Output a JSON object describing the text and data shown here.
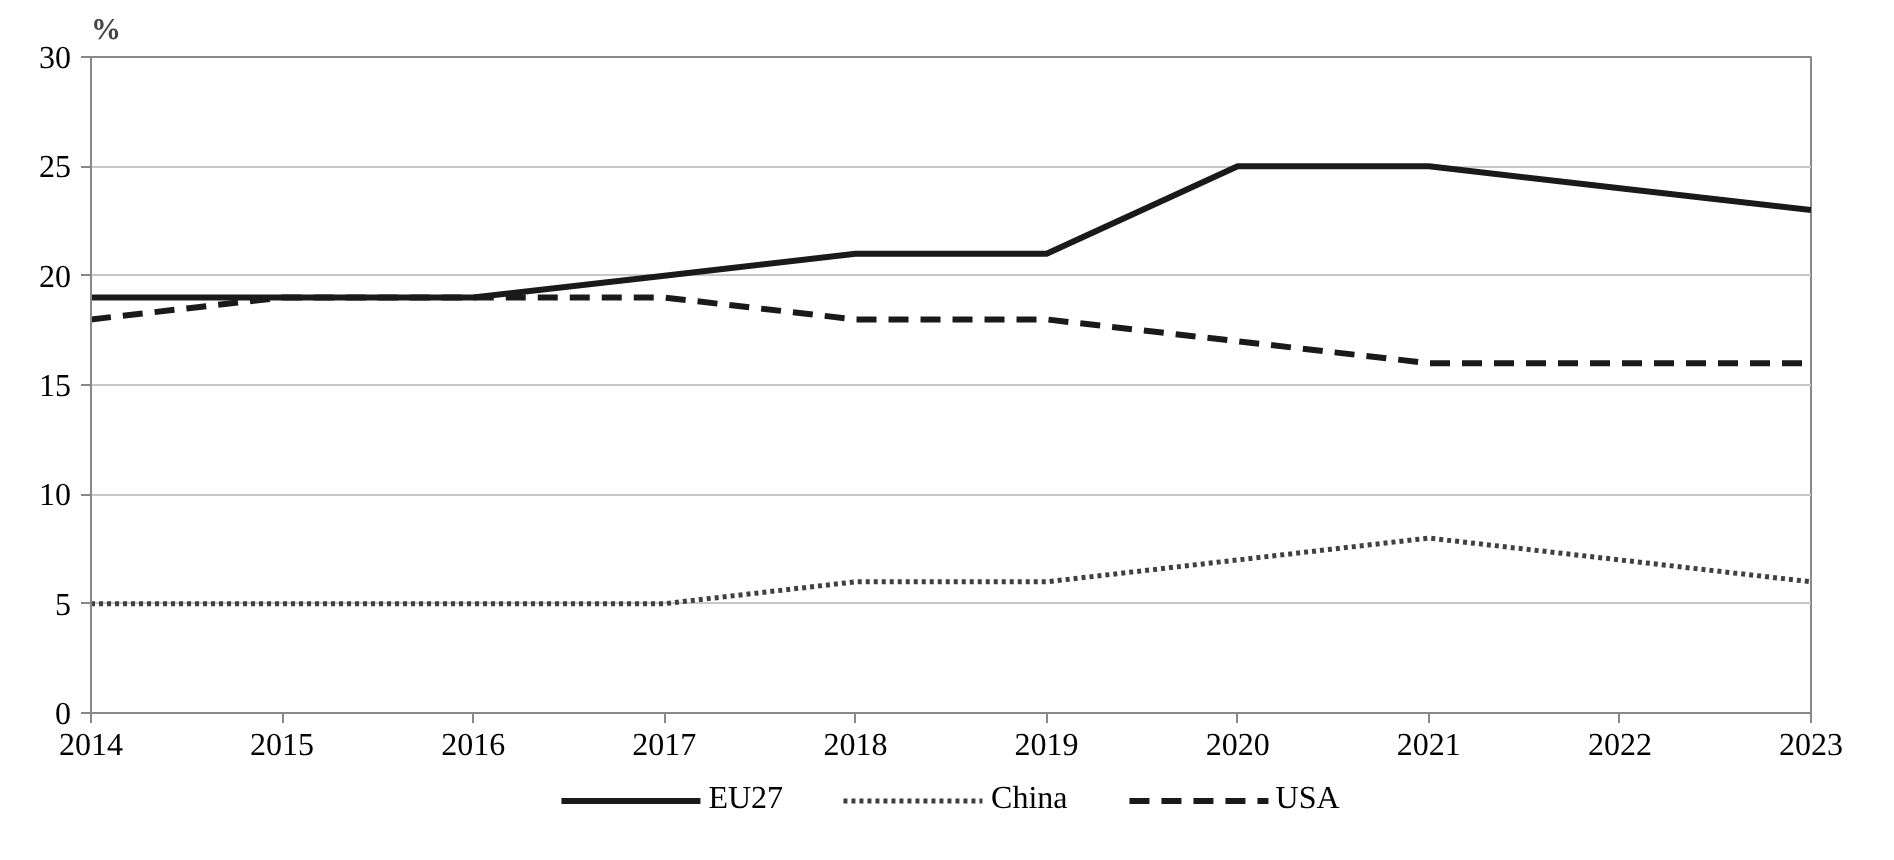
{
  "chart_data": {
    "type": "line",
    "ylabel": "%",
    "x": [
      2014,
      2015,
      2016,
      2017,
      2018,
      2019,
      2020,
      2021,
      2022,
      2023
    ],
    "series": [
      {
        "name": "EU27",
        "color": "#1a1a1a",
        "line_style": "solid",
        "values": [
          19,
          19,
          19,
          20,
          21,
          21,
          25,
          25,
          24,
          23
        ]
      },
      {
        "name": "China",
        "color": "#404040",
        "line_style": "dotted",
        "values": [
          5,
          5,
          5,
          5,
          6,
          6,
          7,
          8,
          7,
          6
        ]
      },
      {
        "name": "USA",
        "color": "#1a1a1a",
        "line_style": "dashed",
        "values": [
          18,
          19,
          19,
          19,
          18,
          18,
          17,
          16,
          16,
          16
        ]
      }
    ],
    "xlim": [
      2014,
      2023
    ],
    "xticks": [
      2014,
      2015,
      2016,
      2017,
      2018,
      2019,
      2020,
      2021,
      2022,
      2023
    ],
    "ylim": [
      0,
      30
    ],
    "yticks": [
      0,
      5,
      10,
      15,
      20,
      25,
      30
    ],
    "grid": "y",
    "legend": "bottom",
    "marker": "none"
  }
}
